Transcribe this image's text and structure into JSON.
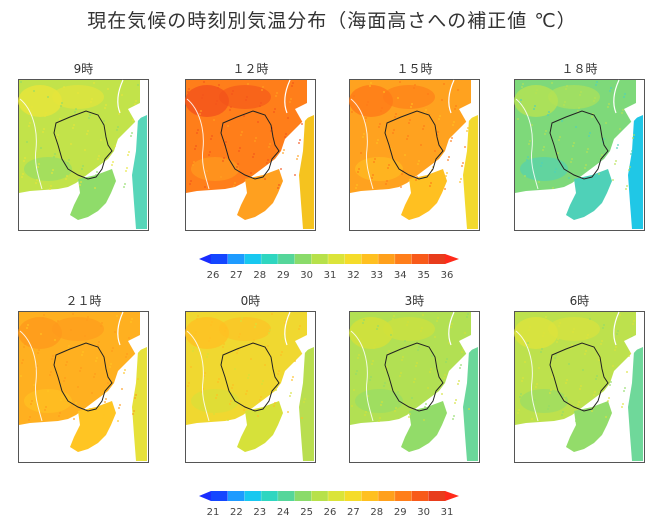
{
  "title": "現在気候の時刻別気温分布（海面高さへの補正値 ℃）",
  "rows": [
    {
      "panels": [
        {
          "label": "9時",
          "base": "#c2e34a",
          "warm": "#e8e53a",
          "cool": "#8fdc6a",
          "sea": "#57d6b9"
        },
        {
          "label": "１２時",
          "base": "#ff7e1a",
          "warm": "#f4531b",
          "cool": "#ffa01f",
          "sea": "#f5c31f"
        },
        {
          "label": "１５時",
          "base": "#ffa21f",
          "warm": "#ff7a18",
          "cool": "#ffc021",
          "sea": "#f3d92e"
        },
        {
          "label": "１８時",
          "base": "#7ed97a",
          "warm": "#b6e253",
          "cool": "#4fd1b8",
          "sea": "#20c7e6"
        }
      ],
      "colorbar": {
        "ticks": [
          "26",
          "27",
          "28",
          "29",
          "30",
          "31",
          "32",
          "33",
          "34",
          "35",
          "36"
        ]
      }
    },
    {
      "panels": [
        {
          "label": "２１時",
          "base": "#ffb020",
          "warm": "#ff9a1c",
          "cool": "#ffc523",
          "sea": "#e6e13a"
        },
        {
          "label": "0時",
          "base": "#f0d830",
          "warm": "#ffc023",
          "cool": "#d6e13a",
          "sea": "#b9de50"
        },
        {
          "label": "3時",
          "base": "#b2e053",
          "warm": "#d4e13a",
          "cool": "#92dc69",
          "sea": "#6bd79a"
        },
        {
          "label": "6時",
          "base": "#bde14d",
          "warm": "#dde33c",
          "cool": "#93dc6a",
          "sea": "#6fd89a"
        }
      ],
      "colorbar": {
        "ticks": [
          "21",
          "22",
          "23",
          "24",
          "25",
          "26",
          "27",
          "28",
          "29",
          "30",
          "31"
        ]
      }
    }
  ]
}
